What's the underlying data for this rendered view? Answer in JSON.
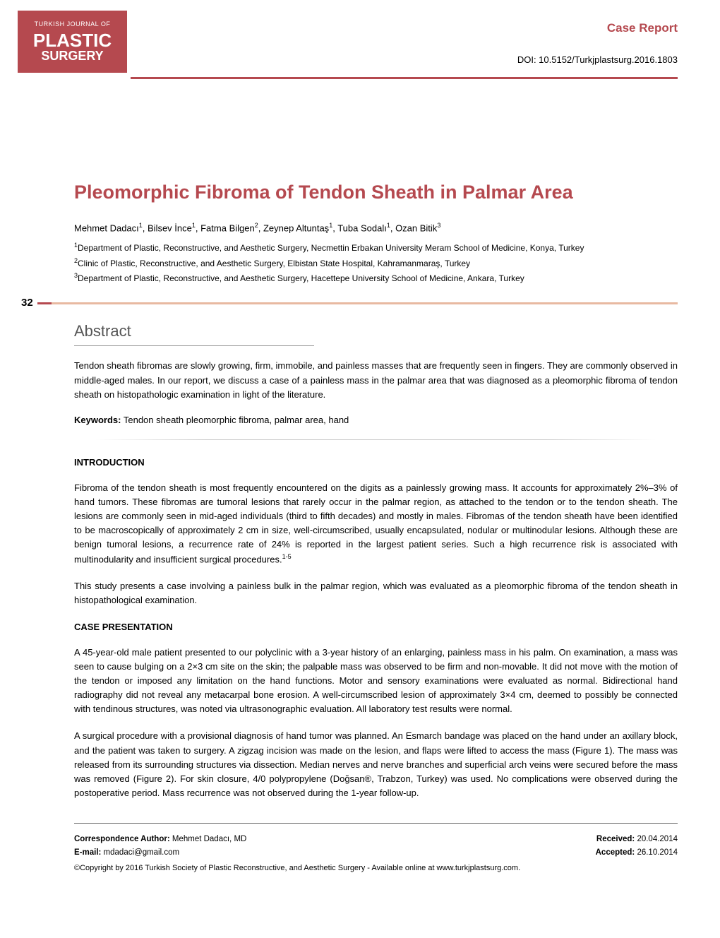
{
  "logo": {
    "line1": "TURKISH JOURNAL OF",
    "line2": "PLASTIC",
    "line3": "SURGERY"
  },
  "header": {
    "category": "Case Report",
    "doi": "DOI: 10.5152/Turkjplastsurg.2016.1803"
  },
  "article": {
    "title": "Pleomorphic Fibroma of Tendon Sheath in Palmar Area",
    "authors_html": "Mehmet Dadacı<span class='sup'>1</span>, Bilsev İnce<span class='sup'>1</span>, Fatma Bilgen<span class='sup'>2</span>, Zeynep Altuntaş<span class='sup'>1</span>, Tuba Sodalı<span class='sup'>1</span>, Ozan Bitik<span class='sup'>3</span>",
    "affiliations": [
      "Department of Plastic, Reconstructive, and Aesthetic Surgery, Necmettin Erbakan University Meram School of Medicine, Konya, Turkey",
      "Clinic of Plastic, Reconstructive, and Aesthetic Surgery, Elbistan State Hospital, Kahramanmaraş, Turkey",
      "Department of Plastic, Reconstructive, and Aesthetic Surgery, Hacettepe University School of Medicine, Ankara, Turkey"
    ]
  },
  "pageNumber": "32",
  "abstract": {
    "heading": "Abstract",
    "text": "Tendon sheath fibromas are slowly growing, firm, immobile, and painless masses that are frequently seen in fingers. They are commonly observed in middle-aged males. In our report, we discuss a case of a painless mass in the palmar area that was diagnosed as a pleomorphic fibroma of tendon sheath on histopathologic examination in light of the literature.",
    "keywords_label": "Keywords:",
    "keywords": "Tendon sheath pleomorphic fibroma, palmar area, hand"
  },
  "sections": {
    "introduction": {
      "heading": "INTRODUCTION",
      "para1_html": "Fibroma of the tendon sheath is most frequently encountered on the digits as a painlessly growing mass. It accounts for approximately 2%–3% of hand tumors. These fibromas are tumoral lesions that rarely occur in the palmar region, as attached to the tendon or to the tendon sheath. The lesions are commonly seen in mid-aged individuals (third to fifth decades) and mostly in males. Fibromas of the tendon sheath have been identified to be macroscopically of approximately 2 cm in size, well-circumscribed, usually encapsulated, nodular or multinodular lesions. Although these are benign tumoral lesions, a recurrence rate of 24% is reported in the largest patient series. Such a high recurrence risk is associated with multinodularity and insufficient surgical procedures.<span class='ref-sup'>1-5</span>",
      "para2": "This study presents a case involving a painless bulk in the palmar region, which was evaluated as a pleomorphic fibroma of the tendon sheath in histopathological examination."
    },
    "case": {
      "heading": "CASE PRESENTATION",
      "para1": "A 45-year-old male patient presented to our polyclinic with a 3-year history of an enlarging, painless mass in his palm. On examination, a mass was seen to cause bulging on a 2×3 cm site on the skin; the palpable mass was observed to be firm and non-movable. It did not move with the motion of the tendon or imposed any limitation on the hand functions. Motor and sensory examinations were evaluated as normal. Bidirectional hand radiography did not reveal any metacarpal bone erosion. A well-circumscribed lesion of approximately 3×4 cm, deemed to possibly be connected with tendinous structures, was noted via ultrasonographic evaluation. All laboratory test results were normal.",
      "para2": "A surgical procedure with a provisional diagnosis of hand tumor was planned. An Esmarch bandage was placed on the hand under an axillary block, and the patient was taken to surgery. A zigzag incision was made on the lesion, and flaps were lifted to access the mass (Figure 1). The mass was released from its surrounding structures via dissection. Median nerves and nerve branches and superficial arch veins were secured before the mass was removed (Figure 2). For skin closure, 4/0 polypropylene (Doğsan®, Trabzon, Turkey) was used. No complications were observed during the postoperative period. Mass recurrence was not observed during the 1-year follow-up."
    }
  },
  "footer": {
    "corr_label": "Correspondence Author:",
    "corr_author": "Mehmet Dadacı, MD",
    "email_label": "E-mail:",
    "email": "mdadaci@gmail.com",
    "copyright": "©Copyright by 2016 Turkish Society of Plastic Reconstructive, and Aesthetic Surgery - Available online at www.turkjplastsurg.com.",
    "received_label": "Received:",
    "received_date": "20.04.2014",
    "accepted_label": "Accepted:",
    "accepted_date": "26.10.2014"
  },
  "colors": {
    "brand": "#b5494f",
    "light_accent": "#e8b9a1"
  }
}
